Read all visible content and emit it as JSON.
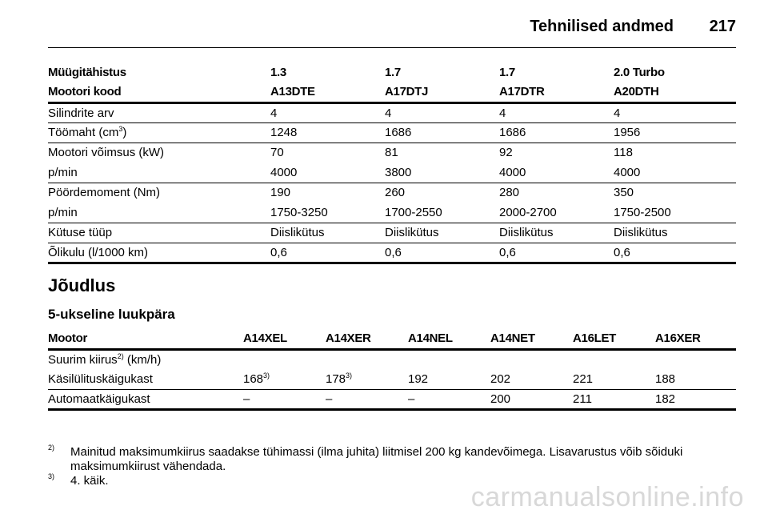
{
  "header": {
    "title": "Tehnilised andmed",
    "page_number": "217"
  },
  "engine_table": {
    "header_rows": [
      [
        "Müügitähistus",
        "1.3",
        "1.7",
        "1.7",
        "2.0 Turbo"
      ],
      [
        "Mootori kood",
        "A13DTE",
        "A17DTJ",
        "A17DTR",
        "A20DTH"
      ]
    ],
    "rows": {
      "cylinders": [
        "Silindrite arv",
        "4",
        "4",
        "4",
        "4"
      ],
      "displacement": {
        "label": "Töömaht (cm",
        "label_sup": "3",
        "label_end": ")",
        "values": [
          "1248",
          "1686",
          "1686",
          "1956"
        ]
      },
      "power": [
        "Mootori võimsus (kW)",
        "70",
        "81",
        "92",
        "118"
      ],
      "power_rpm": [
        "p/min",
        "4000",
        "3800",
        "4000",
        "4000"
      ],
      "torque": [
        "Pöördemoment (Nm)",
        "190",
        "260",
        "280",
        "350"
      ],
      "torque_rpm": [
        "p/min",
        "1750-3250",
        "1700-2550",
        "2000-2700",
        "1750-2500"
      ],
      "fuel": [
        "Kütuse tüüp",
        "Diislikütus",
        "Diislikütus",
        "Diislikütus",
        "Diislikütus"
      ],
      "oil": [
        "Õlikulu (l/1000 km)",
        "0,6",
        "0,6",
        "0,6",
        "0,6"
      ]
    }
  },
  "performance": {
    "section_title": "Jõudlus",
    "subtitle": "5-ukseline luukpära",
    "headers": [
      "Mootor",
      "A14XEL",
      "A14XER",
      "A14NEL",
      "A14NET",
      "A16LET",
      "A16XER"
    ],
    "speed_label": "Suurim kiirus",
    "speed_sup": "2)",
    "speed_unit": " (km/h)",
    "manual": {
      "label": "Käsilülituskäigukast",
      "values": [
        "168",
        "178",
        "192",
        "202",
        "221",
        "188"
      ],
      "sups": [
        "3)",
        "3)",
        "",
        "",
        "",
        ""
      ]
    },
    "automatic": {
      "label": "Automaatkäigukast",
      "values": [
        "–",
        "–",
        "–",
        "200",
        "211",
        "182"
      ]
    }
  },
  "footnotes": [
    {
      "mark": "2)",
      "text": "Mainitud maksimumkiirus saadakse tühimassi (ilma juhita) liitmisel 200 kg kandevõimega. Lisavarustus võib sõiduki maksimumkiirust vähendada."
    },
    {
      "mark": "3)",
      "text": "4. käik."
    }
  ],
  "watermark": "carmanualsonline.info"
}
